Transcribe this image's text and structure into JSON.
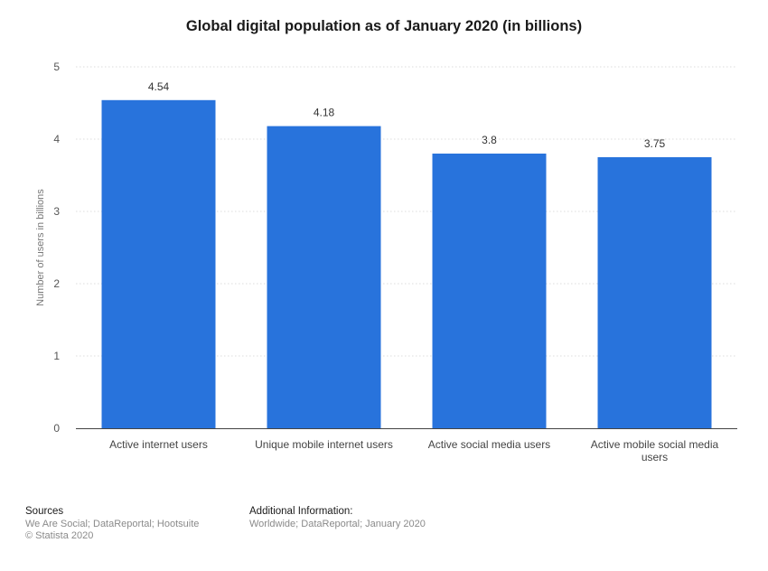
{
  "chart_data": {
    "type": "bar",
    "title": "Global digital population as of January 2020 (in billions)",
    "ylabel": "Number of users in billions",
    "xlabel": "",
    "categories": [
      [
        "Active internet users"
      ],
      [
        "Unique mobile internet users"
      ],
      [
        "Active social media users"
      ],
      [
        "Active mobile social media",
        "users"
      ]
    ],
    "values": [
      4.54,
      4.18,
      3.8,
      3.75
    ],
    "value_labels": [
      "4.54",
      "4.18",
      "3.8",
      "3.75"
    ],
    "ylim": [
      0,
      5
    ],
    "yticks": [
      "0",
      "1",
      "2",
      "3",
      "4",
      "5"
    ],
    "grid": true,
    "legend": "none",
    "colors": {
      "bar": "#2873dc",
      "grid": "#dddddd",
      "axis": "#444444"
    }
  },
  "footer": {
    "sources_heading": "Sources",
    "sources_line1": "We Are Social; DataReportal; Hootsuite",
    "sources_line2": "© Statista 2020",
    "info_heading": "Additional Information:",
    "info_line1": "Worldwide; DataReportal; January 2020"
  }
}
